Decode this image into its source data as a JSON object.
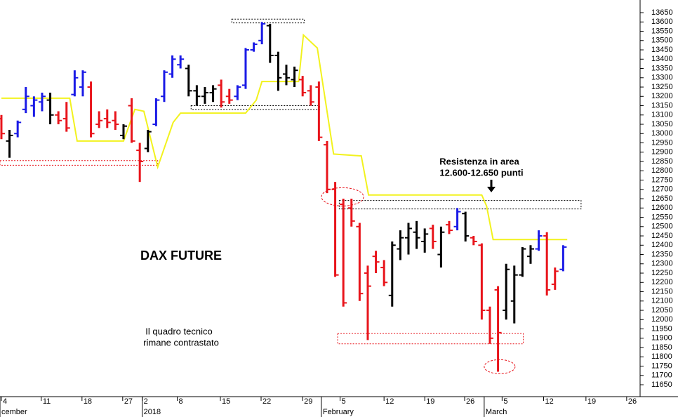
{
  "chart_data": {
    "type": "ohlc",
    "title": "DAX FUTURE",
    "annotations": [
      {
        "lines": [
          "Il quadro tecnico",
          "rimane contrastato"
        ]
      },
      {
        "lines": [
          "Resistenza in area",
          "12.600-12.650 punti"
        ]
      }
    ],
    "ylim": [
      11586,
      13718
    ],
    "yticks": [
      11650,
      11700,
      11750,
      11800,
      11850,
      11900,
      11950,
      12000,
      12050,
      12100,
      12150,
      12200,
      12250,
      12300,
      12350,
      12400,
      12450,
      12500,
      12550,
      12600,
      12650,
      12700,
      12750,
      12800,
      12850,
      12900,
      12950,
      13000,
      13050,
      13100,
      13150,
      13200,
      13250,
      13300,
      13350,
      13400,
      13450,
      13500,
      13550,
      13600,
      13650
    ],
    "xlim": [
      -0.17,
      78.45
    ],
    "xticks": [
      {
        "value": 0,
        "label": "4"
      },
      {
        "value": 4.9,
        "label": "11"
      },
      {
        "value": 9.9,
        "label": "18"
      },
      {
        "value": 14.9,
        "label": "27"
      },
      {
        "value": 17.3,
        "label": "2"
      },
      {
        "value": 21.6,
        "label": "8"
      },
      {
        "value": 26.9,
        "label": "15"
      },
      {
        "value": 31.9,
        "label": "22"
      },
      {
        "value": 37,
        "label": "29"
      },
      {
        "value": 41.6,
        "label": "5"
      },
      {
        "value": 47,
        "label": "12"
      },
      {
        "value": 52,
        "label": "19"
      },
      {
        "value": 56.9,
        "label": "26"
      },
      {
        "value": 61.5,
        "label": "5"
      },
      {
        "value": 66.6,
        "label": "12"
      },
      {
        "value": 71.8,
        "label": "19"
      },
      {
        "value": 76.8,
        "label": "26"
      }
    ],
    "month_ticks": [
      {
        "value": -0.17,
        "label": "cember"
      },
      {
        "value": 17.3,
        "label": "2018"
      },
      {
        "value": 39.3,
        "label": "February"
      },
      {
        "value": 59.3,
        "label": "March"
      }
    ],
    "grid": false,
    "bars": [
      {
        "x": 0,
        "open": 13080,
        "high": 13100,
        "low": 12970,
        "close": 13000,
        "color": "#e8141b"
      },
      {
        "x": 1,
        "open": 12960,
        "high": 13020,
        "low": 12870,
        "close": 12990,
        "color": "#000000"
      },
      {
        "x": 2,
        "open": 13000,
        "high": 13070,
        "low": 12980,
        "close": 13060,
        "color": "#1a1ae6"
      },
      {
        "x": 3,
        "open": 13130,
        "high": 13250,
        "low": 13110,
        "close": 13200,
        "color": "#1a1ae6"
      },
      {
        "x": 4,
        "open": 13150,
        "high": 13200,
        "low": 13090,
        "close": 13180,
        "color": "#1a1ae6"
      },
      {
        "x": 5,
        "open": 13170,
        "high": 13220,
        "low": 13120,
        "close": 13200,
        "color": "#1a1ae6"
      },
      {
        "x": 6,
        "open": 13180,
        "high": 13220,
        "low": 13050,
        "close": 13100,
        "color": "#000000"
      },
      {
        "x": 7,
        "open": 13100,
        "high": 13120,
        "low": 13050,
        "close": 13070,
        "color": "#e8141b"
      },
      {
        "x": 8,
        "open": 13080,
        "high": 13170,
        "low": 13010,
        "close": 13030,
        "color": "#e8141b"
      },
      {
        "x": 9,
        "open": 13210,
        "high": 13340,
        "low": 13200,
        "close": 13300,
        "color": "#1a1ae6"
      },
      {
        "x": 10,
        "open": 13250,
        "high": 13340,
        "low": 13200,
        "close": 13330,
        "color": "#1a1ae6"
      },
      {
        "x": 11,
        "open": 13250,
        "high": 13280,
        "low": 12980,
        "close": 13000,
        "color": "#e8141b"
      },
      {
        "x": 12,
        "open": 13050,
        "high": 13120,
        "low": 13030,
        "close": 13070,
        "color": "#e8141b"
      },
      {
        "x": 13,
        "open": 13080,
        "high": 13130,
        "low": 13030,
        "close": 13060,
        "color": "#e8141b"
      },
      {
        "x": 14,
        "open": 13070,
        "high": 13120,
        "low": 13020,
        "close": 13050,
        "color": "#e8141b"
      },
      {
        "x": 15,
        "open": 12990,
        "high": 13050,
        "low": 12970,
        "close": 13040,
        "color": "#000000"
      },
      {
        "x": 16,
        "open": 13150,
        "high": 13190,
        "low": 12950,
        "close": 12960,
        "color": "#e8141b"
      },
      {
        "x": 17,
        "open": 12910,
        "high": 12950,
        "low": 12740,
        "close": 12850,
        "color": "#e8141b"
      },
      {
        "x": 18,
        "open": 12920,
        "high": 13020,
        "low": 12900,
        "close": 13010,
        "color": "#000000"
      },
      {
        "x": 19,
        "open": 13050,
        "high": 13190,
        "low": 13040,
        "close": 13180,
        "color": "#1a1ae6"
      },
      {
        "x": 20,
        "open": 13200,
        "high": 13340,
        "low": 13170,
        "close": 13330,
        "color": "#1a1ae6"
      },
      {
        "x": 21,
        "open": 13320,
        "high": 13420,
        "low": 13300,
        "close": 13400,
        "color": "#1a1ae6"
      },
      {
        "x": 22,
        "open": 13370,
        "high": 13420,
        "low": 13350,
        "close": 13400,
        "color": "#1a1ae6"
      },
      {
        "x": 23,
        "open": 13350,
        "high": 13370,
        "low": 13200,
        "close": 13230,
        "color": "#000000"
      },
      {
        "x": 24,
        "open": 13230,
        "high": 13260,
        "low": 13150,
        "close": 13200,
        "color": "#000000"
      },
      {
        "x": 25,
        "open": 13200,
        "high": 13250,
        "low": 13160,
        "close": 13220,
        "color": "#000000"
      },
      {
        "x": 26,
        "open": 13220,
        "high": 13260,
        "low": 13170,
        "close": 13240,
        "color": "#000000"
      },
      {
        "x": 27,
        "open": 13260,
        "high": 13290,
        "low": 13140,
        "close": 13170,
        "color": "#e8141b"
      },
      {
        "x": 28,
        "open": 13200,
        "high": 13240,
        "low": 13160,
        "close": 13180,
        "color": "#e8141b"
      },
      {
        "x": 29,
        "open": 13200,
        "high": 13260,
        "low": 13180,
        "close": 13250,
        "color": "#1a1ae6"
      },
      {
        "x": 30,
        "open": 13260,
        "high": 13460,
        "low": 13240,
        "close": 13450,
        "color": "#1a1ae6"
      },
      {
        "x": 31,
        "open": 13450,
        "high": 13490,
        "low": 13440,
        "close": 13480,
        "color": "#1a1ae6"
      },
      {
        "x": 32,
        "open": 13500,
        "high": 13600,
        "low": 13480,
        "close": 13590,
        "color": "#1a1ae6"
      },
      {
        "x": 33,
        "open": 13580,
        "high": 13590,
        "low": 13380,
        "close": 13420,
        "color": "#000000"
      },
      {
        "x": 34,
        "open": 13420,
        "high": 13440,
        "low": 13230,
        "close": 13300,
        "color": "#000000"
      },
      {
        "x": 35,
        "open": 13320,
        "high": 13370,
        "low": 13260,
        "close": 13300,
        "color": "#000000"
      },
      {
        "x": 36,
        "open": 13290,
        "high": 13360,
        "low": 13250,
        "close": 13340,
        "color": "#000000"
      },
      {
        "x": 37,
        "open": 13290,
        "high": 13310,
        "low": 13200,
        "close": 13220,
        "color": "#e8141b"
      },
      {
        "x": 38,
        "open": 13230,
        "high": 13260,
        "low": 13150,
        "close": 13170,
        "color": "#e8141b"
      },
      {
        "x": 39,
        "open": 13250,
        "high": 13280,
        "low": 12960,
        "close": 12980,
        "color": "#e8141b"
      },
      {
        "x": 40,
        "open": 12940,
        "high": 12960,
        "low": 12680,
        "close": 12700,
        "color": "#e8141b"
      },
      {
        "x": 41,
        "open": 12700,
        "high": 12740,
        "low": 12230,
        "close": 12240,
        "color": "#e8141b"
      },
      {
        "x": 42,
        "open": 12620,
        "high": 12650,
        "low": 12070,
        "close": 12090,
        "color": "#e8141b"
      },
      {
        "x": 43,
        "open": 12600,
        "high": 12650,
        "low": 12500,
        "close": 12530,
        "color": "#e8141b"
      },
      {
        "x": 44,
        "open": 12500,
        "high": 12520,
        "low": 12100,
        "close": 12140,
        "color": "#e8141b"
      },
      {
        "x": 45,
        "open": 12250,
        "high": 12290,
        "low": 11890,
        "close": 12180,
        "color": "#e8141b"
      },
      {
        "x": 46,
        "open": 12340,
        "high": 12370,
        "low": 12250,
        "close": 12310,
        "color": "#e8141b"
      },
      {
        "x": 47,
        "open": 12280,
        "high": 12320,
        "low": 12180,
        "close": 12200,
        "color": "#e8141b"
      },
      {
        "x": 48,
        "open": 12130,
        "high": 12420,
        "low": 12070,
        "close": 12400,
        "color": "#000000"
      },
      {
        "x": 49,
        "open": 12380,
        "high": 12480,
        "low": 12320,
        "close": 12440,
        "color": "#000000"
      },
      {
        "x": 50,
        "open": 12440,
        "high": 12520,
        "low": 12350,
        "close": 12490,
        "color": "#000000"
      },
      {
        "x": 51,
        "open": 12470,
        "high": 12530,
        "low": 12380,
        "close": 12440,
        "color": "#000000"
      },
      {
        "x": 52,
        "open": 12420,
        "high": 12490,
        "low": 12360,
        "close": 12460,
        "color": "#000000"
      },
      {
        "x": 53,
        "open": 12490,
        "high": 12510,
        "low": 12380,
        "close": 12420,
        "color": "#e8141b"
      },
      {
        "x": 54,
        "open": 12350,
        "high": 12500,
        "low": 12280,
        "close": 12470,
        "color": "#000000"
      },
      {
        "x": 55,
        "open": 12510,
        "high": 12530,
        "low": 12460,
        "close": 12480,
        "color": "#e8141b"
      },
      {
        "x": 56,
        "open": 12500,
        "high": 12600,
        "low": 12480,
        "close": 12580,
        "color": "#1a1ae6"
      },
      {
        "x": 57,
        "open": 12570,
        "high": 12580,
        "low": 12420,
        "close": 12450,
        "color": "#000000"
      },
      {
        "x": 58,
        "open": 12440,
        "high": 12450,
        "low": 12400,
        "close": 12420,
        "color": "#e8141b"
      },
      {
        "x": 59,
        "open": 12400,
        "high": 12410,
        "low": 12000,
        "close": 12050,
        "color": "#e8141b"
      },
      {
        "x": 60,
        "open": 12050,
        "high": 12070,
        "low": 11870,
        "close": 11900,
        "color": "#e8141b"
      },
      {
        "x": 61,
        "open": 12160,
        "high": 12180,
        "low": 11720,
        "close": 11930,
        "color": "#e8141b"
      },
      {
        "x": 62,
        "open": 12050,
        "high": 12300,
        "low": 12000,
        "close": 12270,
        "color": "#000000"
      },
      {
        "x": 63,
        "open": 12100,
        "high": 12290,
        "low": 11980,
        "close": 12240,
        "color": "#000000"
      },
      {
        "x": 64,
        "open": 12240,
        "high": 12390,
        "low": 12230,
        "close": 12380,
        "color": "#000000"
      },
      {
        "x": 65,
        "open": 12340,
        "high": 12400,
        "low": 12300,
        "close": 12380,
        "color": "#000000"
      },
      {
        "x": 66,
        "open": 12380,
        "high": 12480,
        "low": 12370,
        "close": 12450,
        "color": "#1a1ae6"
      },
      {
        "x": 67,
        "open": 12450,
        "high": 12470,
        "low": 12130,
        "close": 12160,
        "color": "#e8141b"
      },
      {
        "x": 68,
        "open": 12190,
        "high": 12280,
        "low": 12160,
        "close": 12260,
        "color": "#e8141b"
      },
      {
        "x": 69,
        "open": 12270,
        "high": 12400,
        "low": 12260,
        "close": 12390,
        "color": "#1a1ae6"
      }
    ],
    "line": {
      "color": "#f2f21e",
      "x": [
        0,
        8.4,
        9.3,
        15,
        16.4,
        17.5,
        19.2,
        21.1,
        22,
        30,
        31.3,
        32,
        36.5,
        37.1,
        38.8,
        40.8,
        44.2,
        45.1,
        59,
        59.6,
        60.4,
        69.5
      ],
      "values": [
        13190,
        13190,
        12960,
        12960,
        13130,
        13120,
        12820,
        13060,
        13110,
        13110,
        13180,
        13280,
        13280,
        13530,
        13460,
        12890,
        12880,
        12670,
        12670,
        12610,
        12430,
        12430
      ]
    },
    "zones": [
      {
        "x": [
          -0.17,
          19.2
        ],
        "y": [
          12830,
          12855
        ],
        "color": "#e8141b"
      },
      {
        "x": [
          28.3,
          37.2
        ],
        "y": [
          13595,
          13615
        ],
        "color": "#000000"
      },
      {
        "x": [
          23.3,
          39.1
        ],
        "y": [
          13130,
          13150
        ],
        "color": "#000000"
      },
      {
        "x": [
          41.5,
          71.2
        ],
        "y": [
          12595,
          12640
        ],
        "color": "#000000"
      },
      {
        "x": [
          41.3,
          64.1
        ],
        "y": [
          11870,
          11925
        ],
        "color": "#e8141b"
      }
    ],
    "highlights": [
      {
        "x": 41.9,
        "y": 12660,
        "color": "#e8141b"
      },
      {
        "x": 61.2,
        "y": 11747,
        "color": "#e8141b"
      }
    ]
  }
}
